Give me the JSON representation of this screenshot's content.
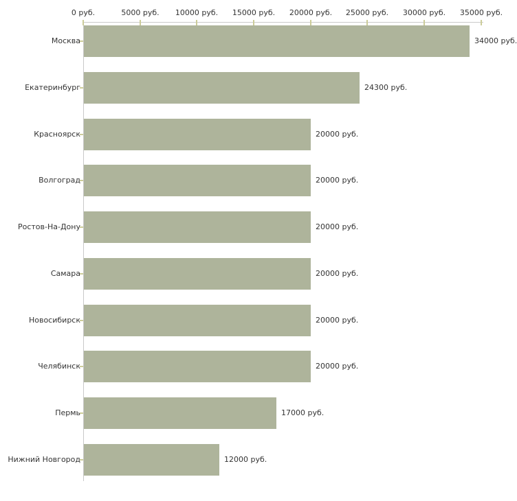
{
  "chart_data": {
    "type": "bar",
    "orientation": "horizontal",
    "title": "",
    "xlabel": "",
    "ylabel": "",
    "xlim": [
      0,
      35000
    ],
    "grid": false,
    "legend": "none",
    "categories": [
      "Москва",
      "Екатеринбург",
      "Красноярск",
      "Волгоград",
      "Ростов-На-Дону",
      "Самара",
      "Новосибирск",
      "Челябинск",
      "Пермь",
      "Нижний Новгород"
    ],
    "values": [
      34000,
      24300,
      20000,
      20000,
      20000,
      20000,
      20000,
      20000,
      17000,
      12000
    ],
    "value_labels": [
      "34000 руб.",
      "24300 руб.",
      "20000 руб.",
      "20000 руб.",
      "20000 руб.",
      "20000 руб.",
      "20000 руб.",
      "20000 руб.",
      "17000 руб.",
      "12000 руб."
    ],
    "x_tick_values": [
      0,
      5000,
      10000,
      15000,
      20000,
      25000,
      30000,
      35000
    ],
    "x_tick_labels": [
      "0 руб.",
      "5000 руб.",
      "10000 руб.",
      "15000 руб.",
      "20000 руб.",
      "25000 руб.",
      "30000 руб.",
      "35000 руб."
    ],
    "colors": {
      "bar": "#aeb49b",
      "axis_line": "#c9c9c9",
      "tick_mark": "#cccc99",
      "text": "#333333",
      "background": "#ffffff"
    }
  }
}
